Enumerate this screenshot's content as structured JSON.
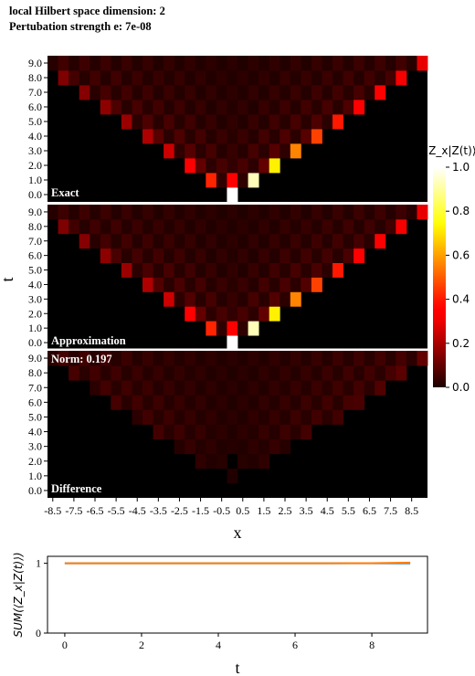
{
  "header": {
    "line1": "local Hilbert space dimension: 2",
    "line2": "Pertubation strength e: 7e-08"
  },
  "chart_data": [
    {
      "type": "heatmap",
      "colormap": "hot",
      "panels": [
        {
          "label": "Exact",
          "mode": "exact"
        },
        {
          "label": "Approximation",
          "mode": "approx"
        },
        {
          "label": "Difference",
          "mode": "diff",
          "note": "Norm: 0.197"
        }
      ],
      "xlabel": "x",
      "ylabel": "t",
      "x_ticks": [
        "-8.5",
        "-7.5",
        "-6.5",
        "-5.5",
        "-4.5",
        "-3.5",
        "-2.5",
        "-1.5",
        "-0.5",
        "0.5",
        "1.5",
        "2.5",
        "3.5",
        "4.5",
        "5.5",
        "6.5",
        "7.5",
        "8.5"
      ],
      "y_ticks": [
        "0.0",
        "1.0",
        "2.0",
        "3.0",
        "4.0",
        "5.0",
        "6.0",
        "7.0",
        "8.0",
        "9.0"
      ],
      "x_range": [
        -8.5,
        9.0
      ],
      "t_values": [
        0,
        1,
        2,
        3,
        4,
        5,
        6,
        7,
        8,
        9
      ],
      "front_speed": 1,
      "front_values": [
        1.0,
        0.93,
        0.72,
        0.56,
        0.46,
        0.4,
        0.36,
        0.33,
        0.31,
        0.29,
        0.27,
        0.25,
        0.23,
        0.22,
        0.21,
        0.2,
        0.19,
        0.18,
        0.17
      ],
      "colorbar": {
        "label": "⟨Z_x|Z(t)⟩",
        "min": 0.0,
        "max": 1.0,
        "ticks": [
          "0.0",
          "0.2",
          "0.4",
          "0.6",
          "0.8",
          "1.0"
        ]
      }
    },
    {
      "type": "line",
      "xlabel": "t",
      "ylabel": "SUM(⟨Z_x|Z(t)⟩)",
      "xlim": [
        -0.45,
        9.45
      ],
      "ylim": [
        0,
        1.1
      ],
      "x_ticks": [
        "0",
        "2",
        "4",
        "6",
        "8"
      ],
      "y_ticks": [
        "0",
        "1"
      ],
      "series": [
        {
          "color": "#1f77b4",
          "x": [
            0,
            1,
            2,
            3,
            4,
            5,
            6,
            7,
            8,
            9
          ],
          "values": [
            1.0,
            1.0,
            1.0,
            1.0,
            1.0,
            1.0,
            1.0,
            1.0,
            1.0,
            1.0
          ]
        },
        {
          "color": "#ff7f0e",
          "x": [
            0,
            1,
            2,
            3,
            4,
            5,
            6,
            7,
            8,
            9
          ],
          "values": [
            1.0,
            1.0,
            1.0,
            1.0,
            1.0,
            1.0,
            1.0,
            1.0,
            1.002,
            1.01
          ]
        }
      ]
    }
  ]
}
